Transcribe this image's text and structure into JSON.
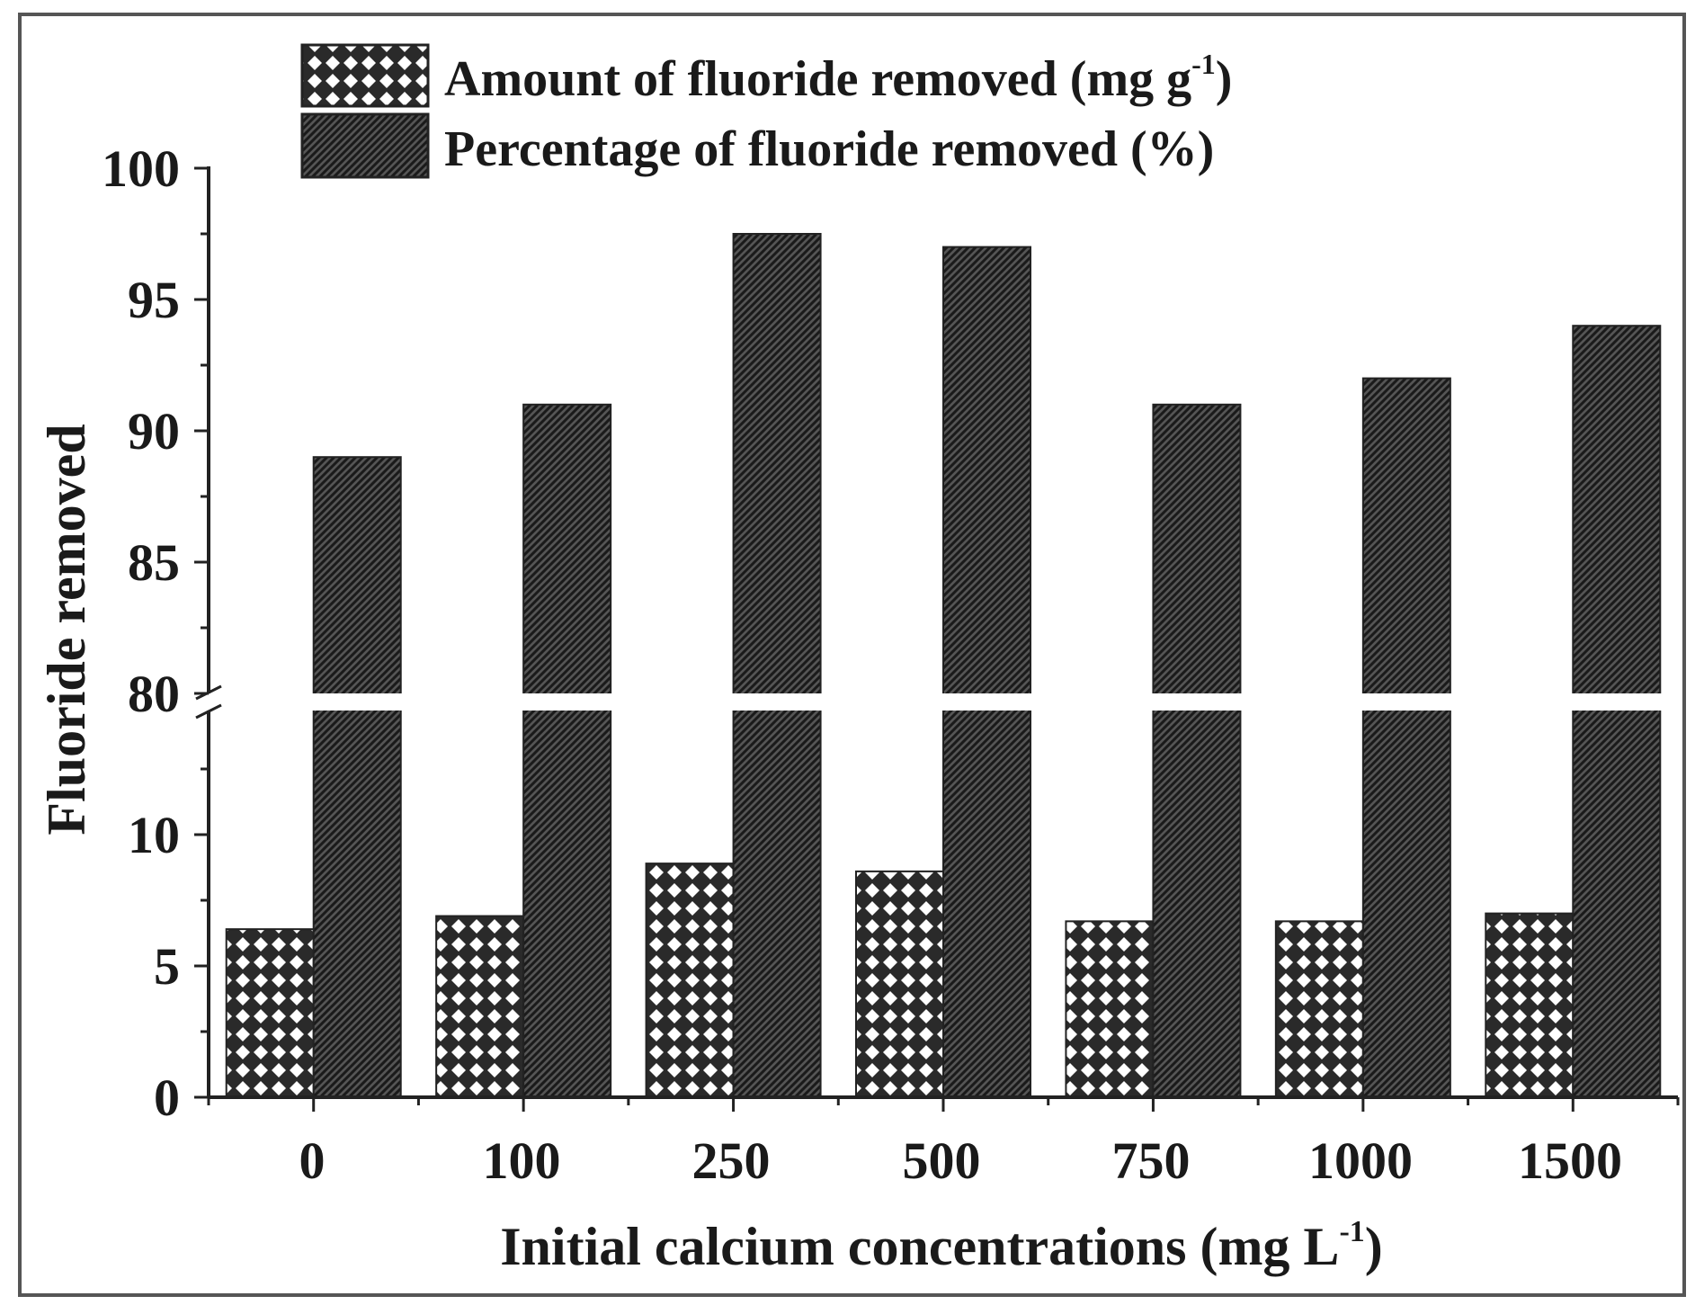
{
  "chart_data": {
    "type": "bar",
    "xlabel": "Initial calcium concentrations (mg L",
    "xlabel_sup": "-1",
    "xlabel_end": ")",
    "ylabel": "Fluoride removed",
    "categories": [
      "0",
      "100",
      "250",
      "500",
      "750",
      "1000",
      "1500"
    ],
    "y_broken_axis": true,
    "y_lower_range": [
      0,
      15
    ],
    "y_upper_range": [
      80,
      100
    ],
    "y_ticks_lower": [
      "0",
      "5",
      "10"
    ],
    "y_ticks_upper": [
      "80",
      "85",
      "90",
      "95",
      "100"
    ],
    "legend_position": "top-left",
    "series": [
      {
        "name": "Amount of fluoride removed (mg g",
        "name_sup": "-1",
        "name_end": ")",
        "pattern": "crosshatch",
        "values": [
          6.4,
          6.9,
          8.9,
          8.6,
          6.7,
          6.7,
          7.0
        ]
      },
      {
        "name": "Percentage of fluoride removed (%)",
        "pattern": "diagonal",
        "values": [
          89,
          91,
          97.5,
          97,
          91,
          92,
          94
        ]
      }
    ]
  }
}
